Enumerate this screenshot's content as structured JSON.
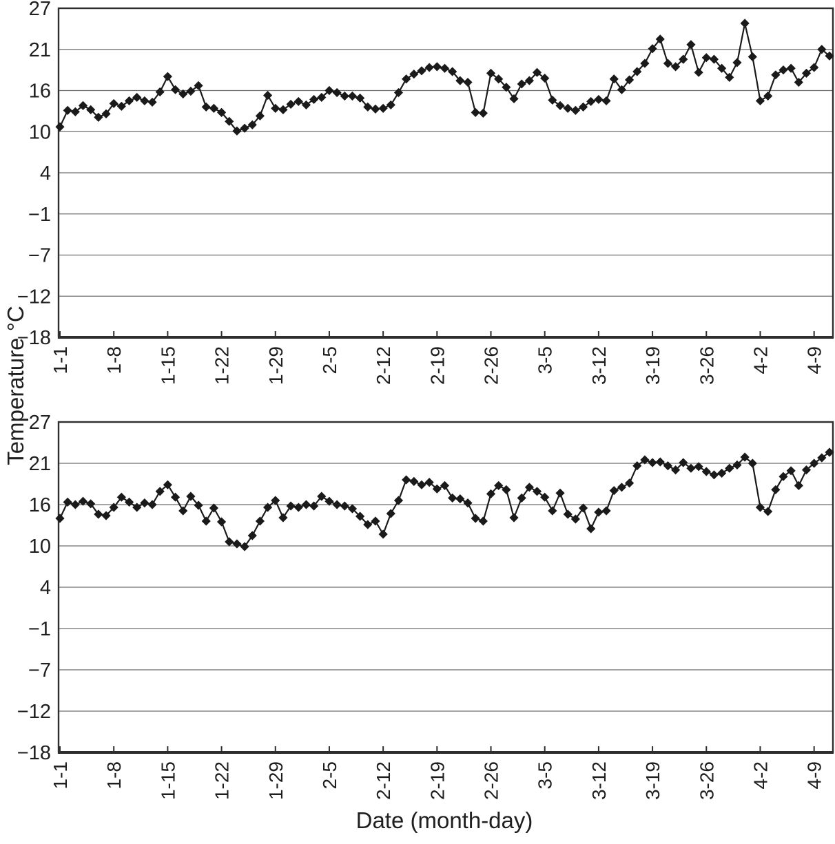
{
  "figure": {
    "y_axis_title": "Temperature °C",
    "x_axis_title": "Date (month-day)"
  },
  "chart_data": [
    {
      "id": "top",
      "type": "line",
      "title": "",
      "xlabel": "Date (month-day)",
      "ylabel": "Temperature °C",
      "marker": "diamond",
      "line_color": "#1a1a1a",
      "grid": true,
      "legend_position": "none",
      "y_tick_values": [
        27,
        21,
        16,
        10,
        4,
        -1,
        -7,
        -12,
        -18
      ],
      "y_tick_labels": [
        "27",
        "21",
        "16",
        "10",
        "4",
        "−1",
        "−7",
        "−12",
        "−18"
      ],
      "x_tick_labels": [
        "1-1",
        "1-8",
        "1-15",
        "1-22",
        "1-29",
        "2-5",
        "2-12",
        "2-19",
        "2-26",
        "3-5",
        "3-12",
        "3-19",
        "3-26",
        "4-2",
        "4-9"
      ],
      "categories": [
        "1-1",
        "1-2",
        "1-3",
        "1-4",
        "1-5",
        "1-6",
        "1-7",
        "1-8",
        "1-9",
        "1-10",
        "1-11",
        "1-12",
        "1-13",
        "1-14",
        "1-15",
        "1-16",
        "1-17",
        "1-18",
        "1-19",
        "1-20",
        "1-21",
        "1-22",
        "1-23",
        "1-24",
        "1-25",
        "1-26",
        "1-27",
        "1-28",
        "1-29",
        "1-30",
        "1-31",
        "2-1",
        "2-2",
        "2-3",
        "2-4",
        "2-5",
        "2-6",
        "2-7",
        "2-8",
        "2-9",
        "2-10",
        "2-11",
        "2-12",
        "2-13",
        "2-14",
        "2-15",
        "2-16",
        "2-17",
        "2-18",
        "2-19",
        "2-20",
        "2-21",
        "2-22",
        "2-23",
        "2-24",
        "2-25",
        "2-26",
        "2-27",
        "2-28",
        "3-1",
        "3-2",
        "3-3",
        "3-4",
        "3-5",
        "3-6",
        "3-7",
        "3-8",
        "3-9",
        "3-10",
        "3-11",
        "3-12",
        "3-13",
        "3-14",
        "3-15",
        "3-16",
        "3-17",
        "3-18",
        "3-19",
        "3-20",
        "3-21",
        "3-22",
        "3-23",
        "3-24",
        "3-25",
        "3-26",
        "3-27",
        "3-28",
        "3-29",
        "3-30",
        "3-31",
        "4-1",
        "4-2",
        "4-3",
        "4-4",
        "4-5",
        "4-6",
        "4-7",
        "4-8",
        "4-9",
        "4-10",
        "4-11"
      ],
      "values": [
        10.7,
        13.1,
        12.9,
        13.8,
        13.2,
        12.1,
        12.6,
        14.1,
        13.7,
        14.5,
        15.0,
        14.5,
        14.3,
        15.8,
        17.7,
        16.1,
        15.5,
        15.9,
        16.6,
        13.6,
        13.4,
        12.8,
        11.5,
        10.1,
        10.5,
        11.0,
        12.3,
        15.3,
        13.4,
        13.2,
        14.0,
        14.4,
        13.9,
        14.7,
        15.0,
        16.0,
        15.7,
        15.2,
        15.2,
        14.9,
        13.6,
        13.3,
        13.4,
        13.9,
        15.7,
        17.4,
        18.0,
        18.4,
        18.8,
        18.9,
        18.7,
        18.3,
        17.2,
        17.0,
        12.8,
        12.7,
        18.1,
        17.4,
        16.4,
        14.8,
        16.8,
        17.2,
        18.2,
        17.5,
        14.6,
        13.8,
        13.4,
        13.1,
        13.6,
        14.4,
        14.7,
        14.5,
        17.4,
        16.1,
        17.3,
        18.3,
        19.3,
        21.1,
        22.5,
        19.3,
        18.9,
        19.8,
        21.7,
        18.2,
        20.0,
        19.8,
        18.7,
        17.6,
        19.4,
        24.8,
        20.1,
        14.5,
        15.2,
        17.9,
        18.5,
        18.7,
        17.0,
        18.1,
        18.8,
        21.0,
        20.2
      ]
    },
    {
      "id": "bottom",
      "type": "line",
      "title": "",
      "xlabel": "Date (month-day)",
      "ylabel": "Temperature °C",
      "marker": "diamond",
      "line_color": "#1a1a1a",
      "grid": true,
      "legend_position": "none",
      "y_tick_values": [
        27,
        21,
        16,
        10,
        4,
        -1,
        -7,
        -12,
        -18
      ],
      "y_tick_labels": [
        "27",
        "21",
        "16",
        "10",
        "4",
        "−1",
        "−7",
        "−12",
        "−18"
      ],
      "x_tick_labels": [
        "1-1",
        "1-8",
        "1-15",
        "1-22",
        "1-29",
        "2-5",
        "2-12",
        "2-19",
        "2-26",
        "3-5",
        "3-12",
        "3-19",
        "3-26",
        "4-2",
        "4-9"
      ],
      "categories": [
        "1-1",
        "1-2",
        "1-3",
        "1-4",
        "1-5",
        "1-6",
        "1-7",
        "1-8",
        "1-9",
        "1-10",
        "1-11",
        "1-12",
        "1-13",
        "1-14",
        "1-15",
        "1-16",
        "1-17",
        "1-18",
        "1-19",
        "1-20",
        "1-21",
        "1-22",
        "1-23",
        "1-24",
        "1-25",
        "1-26",
        "1-27",
        "1-28",
        "1-29",
        "1-30",
        "1-31",
        "2-1",
        "2-2",
        "2-3",
        "2-4",
        "2-5",
        "2-6",
        "2-7",
        "2-8",
        "2-9",
        "2-10",
        "2-11",
        "2-12",
        "2-13",
        "2-14",
        "2-15",
        "2-16",
        "2-17",
        "2-18",
        "2-19",
        "2-20",
        "2-21",
        "2-22",
        "2-23",
        "2-24",
        "2-25",
        "2-26",
        "2-27",
        "2-28",
        "3-1",
        "3-2",
        "3-3",
        "3-4",
        "3-5",
        "3-6",
        "3-7",
        "3-8",
        "3-9",
        "3-10",
        "3-11",
        "3-12",
        "3-13",
        "3-14",
        "3-15",
        "3-16",
        "3-17",
        "3-18",
        "3-19",
        "3-20",
        "3-21",
        "3-22",
        "3-23",
        "3-24",
        "3-25",
        "3-26",
        "3-27",
        "3-28",
        "3-29",
        "3-30",
        "3-31",
        "4-1",
        "4-2",
        "4-3",
        "4-4",
        "4-5",
        "4-6",
        "4-7",
        "4-8",
        "4-9",
        "4-10",
        "4-11"
      ],
      "values": [
        14.0,
        16.3,
        16.0,
        16.4,
        16.1,
        14.6,
        14.4,
        15.6,
        16.9,
        16.3,
        15.6,
        16.2,
        16.0,
        17.6,
        18.4,
        16.9,
        15.1,
        17.0,
        15.9,
        13.6,
        15.5,
        13.5,
        10.6,
        10.3,
        9.9,
        11.5,
        13.6,
        15.6,
        16.5,
        14.1,
        15.8,
        15.6,
        16.0,
        15.8,
        17.0,
        16.4,
        16.0,
        15.8,
        15.4,
        14.3,
        13.1,
        13.6,
        11.7,
        14.7,
        16.5,
        19.0,
        18.8,
        18.4,
        18.7,
        17.9,
        18.3,
        16.8,
        16.7,
        16.2,
        14.0,
        13.6,
        17.3,
        18.3,
        17.8,
        14.1,
        16.8,
        18.1,
        17.6,
        16.9,
        15.1,
        17.4,
        14.6,
        13.9,
        15.5,
        12.5,
        14.9,
        15.1,
        17.7,
        18.1,
        18.6,
        20.7,
        21.5,
        21.1,
        21.2,
        20.7,
        20.2,
        21.1,
        20.4,
        20.6,
        20.0,
        19.6,
        19.8,
        20.4,
        20.8,
        21.9,
        21.0,
        15.6,
        15.0,
        17.8,
        19.4,
        20.1,
        18.3,
        20.2,
        21.0,
        21.8,
        22.6
      ]
    }
  ]
}
